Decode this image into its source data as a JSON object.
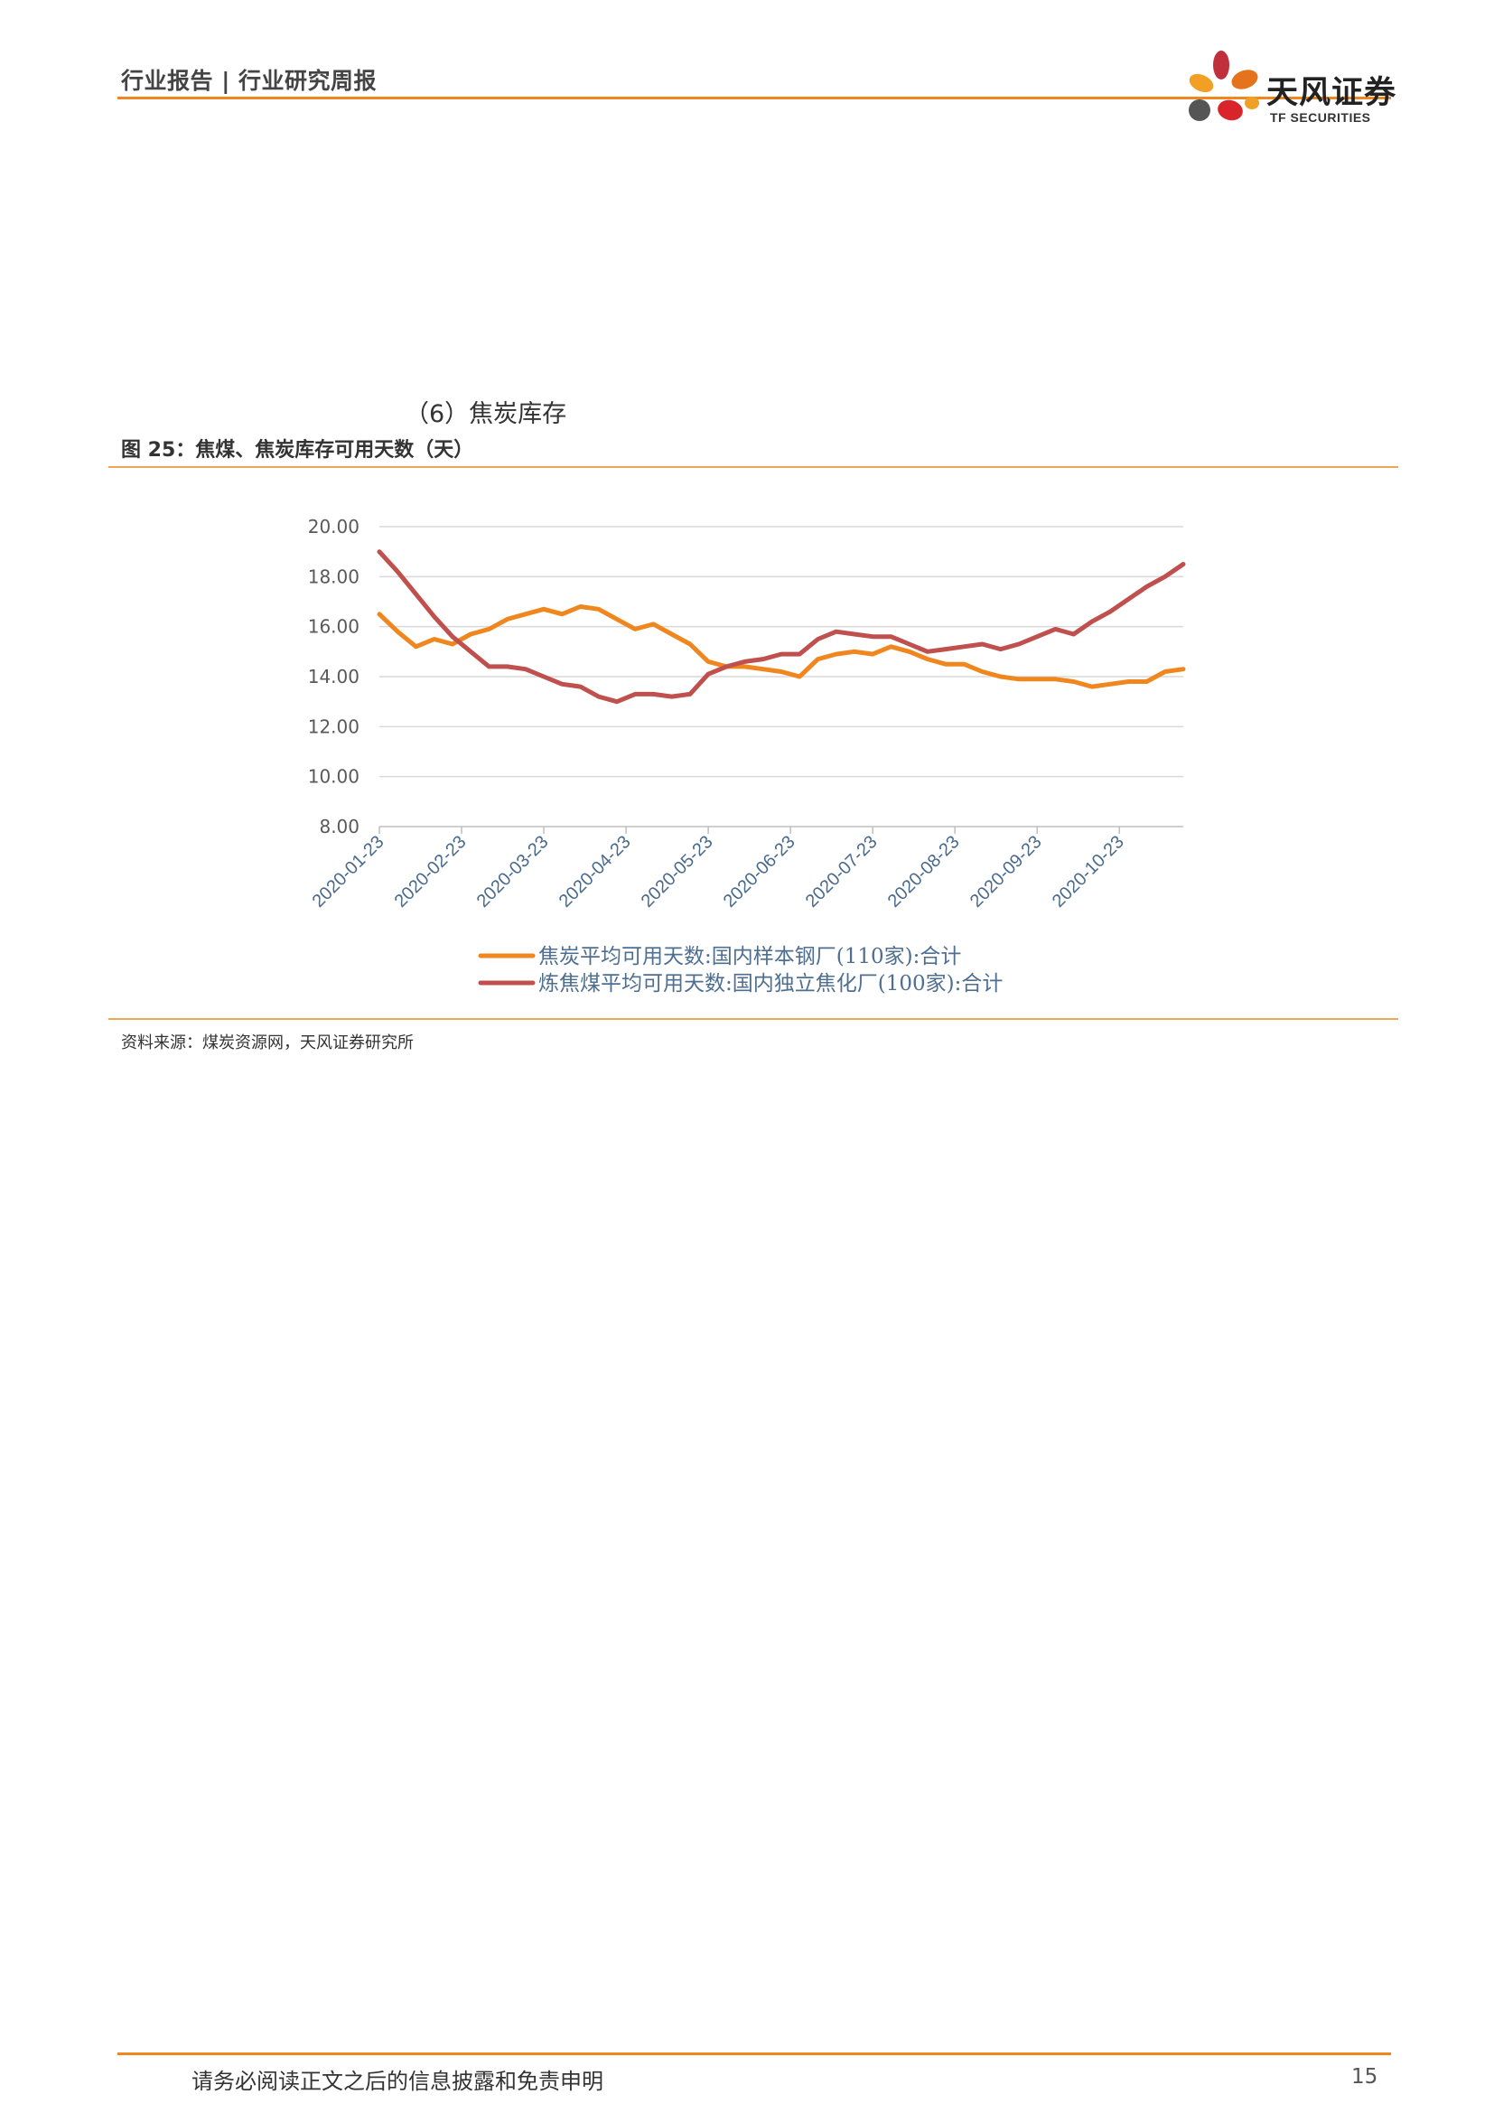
{
  "header": {
    "label": "行业报告 | 行业研究周报"
  },
  "logo": {
    "name_cn": "天风证券",
    "name_en": "TF SECURITIES",
    "colors": [
      "#e5731c",
      "#c0303a",
      "#f29f25",
      "#555555",
      "#d9242b"
    ]
  },
  "section": {
    "heading": "（6）焦炭库存"
  },
  "figure": {
    "caption": "图 25：焦煤、焦炭库存可用天数（天）",
    "source": "资料来源：煤炭资源网，天风证券研究所"
  },
  "chart_data": {
    "type": "line",
    "title": "",
    "xlabel": "",
    "ylabel": "",
    "ylim": [
      8,
      20
    ],
    "yticks": [
      "20.00",
      "18.00",
      "16.00",
      "14.00",
      "12.00",
      "10.00",
      "8.00"
    ],
    "xtick_labels": [
      "2020-01-23",
      "2020-02-23",
      "2020-03-23",
      "2020-04-23",
      "2020-05-23",
      "2020-06-23",
      "2020-07-23",
      "2020-08-23",
      "2020-09-23",
      "2020-10-23"
    ],
    "grid": "horizontal",
    "legend_position": "bottom",
    "series": [
      {
        "name": "焦炭平均可用天数:国内样本钢厂(110家):合计",
        "color": "#f0861e",
        "values": [
          16.5,
          15.8,
          15.2,
          15.5,
          15.3,
          15.7,
          15.9,
          16.3,
          16.5,
          16.7,
          16.5,
          16.8,
          16.7,
          16.3,
          15.9,
          16.1,
          15.7,
          15.3,
          14.6,
          14.4,
          14.4,
          14.3,
          14.2,
          14.0,
          14.7,
          14.9,
          15.0,
          14.9,
          15.2,
          15.0,
          14.7,
          14.5,
          14.5,
          14.2,
          14.0,
          13.9,
          13.9,
          13.9,
          13.8,
          13.6,
          13.7,
          13.8,
          13.8,
          14.2,
          14.3
        ]
      },
      {
        "name": "炼焦煤平均可用天数:国内独立焦化厂(100家):合计",
        "color": "#c0504d",
        "values": [
          19.0,
          18.2,
          17.3,
          16.4,
          15.6,
          15.0,
          14.4,
          14.4,
          14.3,
          14.0,
          13.7,
          13.6,
          13.2,
          13.0,
          13.3,
          13.3,
          13.2,
          13.3,
          14.1,
          14.4,
          14.6,
          14.7,
          14.9,
          14.9,
          15.5,
          15.8,
          15.7,
          15.6,
          15.6,
          15.3,
          15.0,
          15.1,
          15.2,
          15.3,
          15.1,
          15.3,
          15.6,
          15.9,
          15.7,
          16.2,
          16.6,
          17.1,
          17.6,
          18.0,
          18.5
        ]
      }
    ]
  },
  "footer": {
    "note": "请务必阅读正文之后的信息披露和免责申明",
    "page_number": "15"
  }
}
